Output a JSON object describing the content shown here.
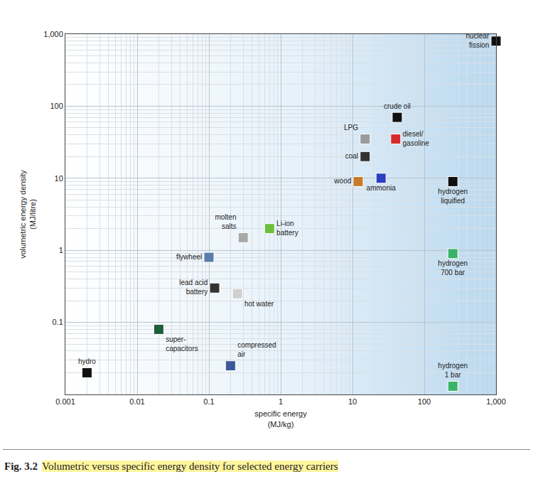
{
  "chart_data": {
    "type": "scatter",
    "figure_label": "Fig. 3.2",
    "title": "Volumetric versus specific energy density for selected energy carriers",
    "x_label": "specific energy\n(MJ/kg)",
    "y_label": "volumetric energy density\n(MJ/litre)",
    "labels": [
      "hydro",
      "super-\ncapacitors",
      "compressed\nair",
      "flywheel",
      "lead acid\nbattery",
      "molten\nsalts",
      "hot water",
      "Li-ion\nbattery",
      "nuclear\nfission",
      "crude oil",
      "LPG",
      "diesel/\ngasoline",
      "coal",
      "wood",
      "ammonia",
      "hydrogen\nliquified",
      "hydrogen\n700 bar",
      "hydrogen\n1 bar"
    ],
    "x": [
      0.002,
      0.02,
      0.2,
      0.1,
      0.12,
      0.3,
      0.25,
      0.7,
      1000,
      42,
      15,
      40,
      15,
      12,
      25,
      250,
      250,
      250
    ],
    "values": [
      0.02,
      0.08,
      0.025,
      0.8,
      0.3,
      1.5,
      0.25,
      2,
      800,
      70,
      35,
      35,
      20,
      9,
      10,
      9,
      0.9,
      0.013
    ],
    "colors": [
      "#111111",
      "#1f5e3a",
      "#3a5a9a",
      "#5a7fa8",
      "#333333",
      "#a8a8a8",
      "#d0d0d0",
      "#6dbf3a",
      "#111111",
      "#111111",
      "#9a9a9a",
      "#d62a2a",
      "#333333",
      "#c87a2a",
      "#2a3fbf",
      "#111111",
      "#3bb36a",
      "#3bb36a"
    ],
    "marker": "square",
    "log": true,
    "grid": true,
    "xlim": [
      0.001,
      1000
    ],
    "ylim": [
      0.01,
      1000
    ],
    "xticks": [
      0.001,
      0.01,
      0.1,
      1,
      10,
      100,
      {
        "value": 1000,
        "label": "1,000"
      }
    ],
    "yticks": [
      0.1,
      1,
      10,
      100,
      {
        "value": 1000,
        "label": "1,000"
      }
    ]
  }
}
